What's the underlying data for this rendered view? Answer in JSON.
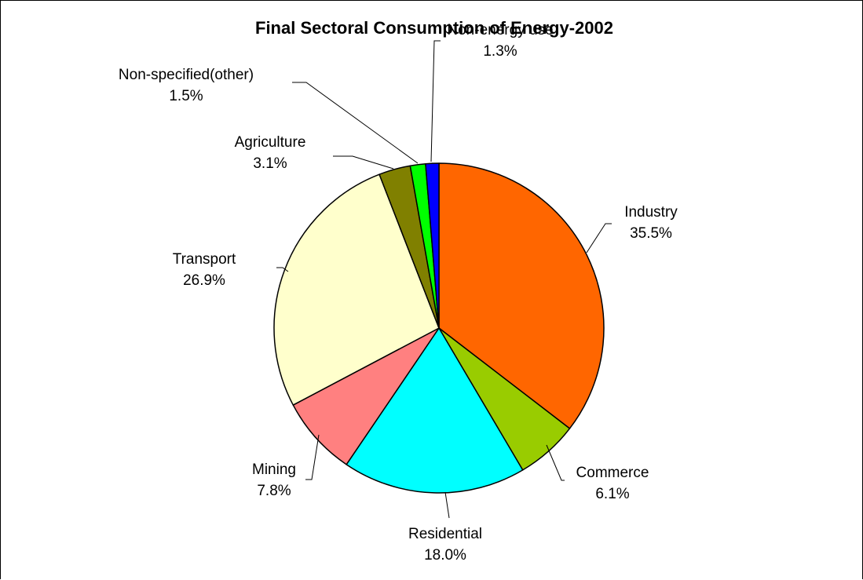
{
  "chart_data": {
    "type": "pie",
    "title": "Final Sectoral Consumption of Energy-2002",
    "start_angle_deg": 0,
    "direction": "clockwise",
    "slices": [
      {
        "name": "Industry",
        "value": 35.5,
        "label": "35.5%",
        "color": "#FF6600"
      },
      {
        "name": "Commerce",
        "value": 6.1,
        "label": "6.1%",
        "color": "#99CC00"
      },
      {
        "name": "Residential",
        "value": 18.0,
        "label": "18.0%",
        "color": "#00FFFF"
      },
      {
        "name": "Mining",
        "value": 7.8,
        "label": "7.8%",
        "color": "#FF8080"
      },
      {
        "name": "Transport",
        "value": 26.9,
        "label": "26.9%",
        "color": "#FFFFCC"
      },
      {
        "name": "Agriculture",
        "value": 3.1,
        "label": "3.1%",
        "color": "#808000"
      },
      {
        "name": "Non-specified(other)",
        "value": 1.5,
        "label": "1.5%",
        "color": "#00FF00"
      },
      {
        "name": "Non-energy use",
        "value": 1.3,
        "label": "1.3%",
        "color": "#0000FF"
      }
    ],
    "legend": "none",
    "data_labels": "category name and percentage, outside with leader lines"
  }
}
